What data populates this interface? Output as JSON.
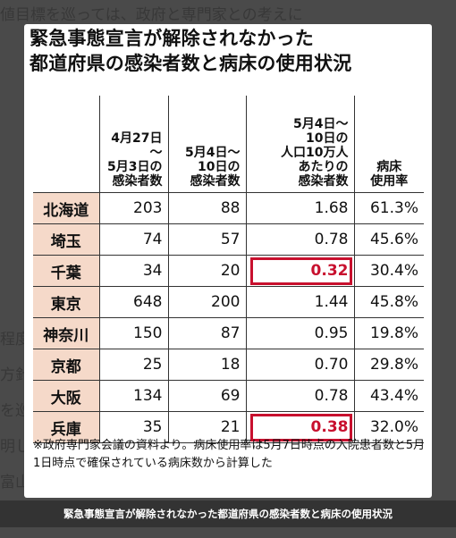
{
  "title_lines": [
    "緊急事態宣言が解除されなかった",
    "都道府県の感染者数と病床の使用状況"
  ],
  "columns": [
    {
      "label": "",
      "key": "pref"
    },
    {
      "label": "4月27日～\n5月3日の\n感染者数"
    },
    {
      "label": "5月4日～\n10日の\n感染者数"
    },
    {
      "label": "5月4日～\n10日の\n人口10万人\nあたりの\n感染者数"
    },
    {
      "label": "病床\n使用率"
    }
  ],
  "rows": [
    {
      "pref": "北海道",
      "a": "203",
      "b": "88",
      "c": "1.68",
      "d": "61.3%",
      "highlight": false
    },
    {
      "pref": "埼玉",
      "a": "74",
      "b": "57",
      "c": "0.78",
      "d": "45.6%",
      "highlight": false
    },
    {
      "pref": "千葉",
      "a": "34",
      "b": "20",
      "c": "0.32",
      "d": "30.4%",
      "highlight": true
    },
    {
      "pref": "東京",
      "a": "648",
      "b": "200",
      "c": "1.44",
      "d": "45.8%",
      "highlight": false
    },
    {
      "pref": "神奈川",
      "a": "150",
      "b": "87",
      "c": "0.95",
      "d": "19.8%",
      "highlight": false
    },
    {
      "pref": "京都",
      "a": "25",
      "b": "18",
      "c": "0.70",
      "d": "29.8%",
      "highlight": false
    },
    {
      "pref": "大阪",
      "a": "134",
      "b": "69",
      "c": "0.78",
      "d": "43.4%",
      "highlight": false
    },
    {
      "pref": "兵庫",
      "a": "35",
      "b": "21",
      "c": "0.38",
      "d": "32.0%",
      "highlight": true
    }
  ],
  "note": "※政府専門家会議の資料より。病床使用率は5月7日時点の入院患者数と5月1日時点で確保されている病床数から計算した",
  "caption": "緊急事態宣言が解除されなかった都道府県の感染者数と病床の使用状況",
  "background_text": [
    "値目標を巡っては、政府と専門家との考えに",
    "程度",
    "方針",
    "を巡",
    "明し",
    "富山",
    "きて"
  ],
  "colors": {
    "highlight": "#c8102e",
    "pref_bg": "#f5d9c9"
  }
}
